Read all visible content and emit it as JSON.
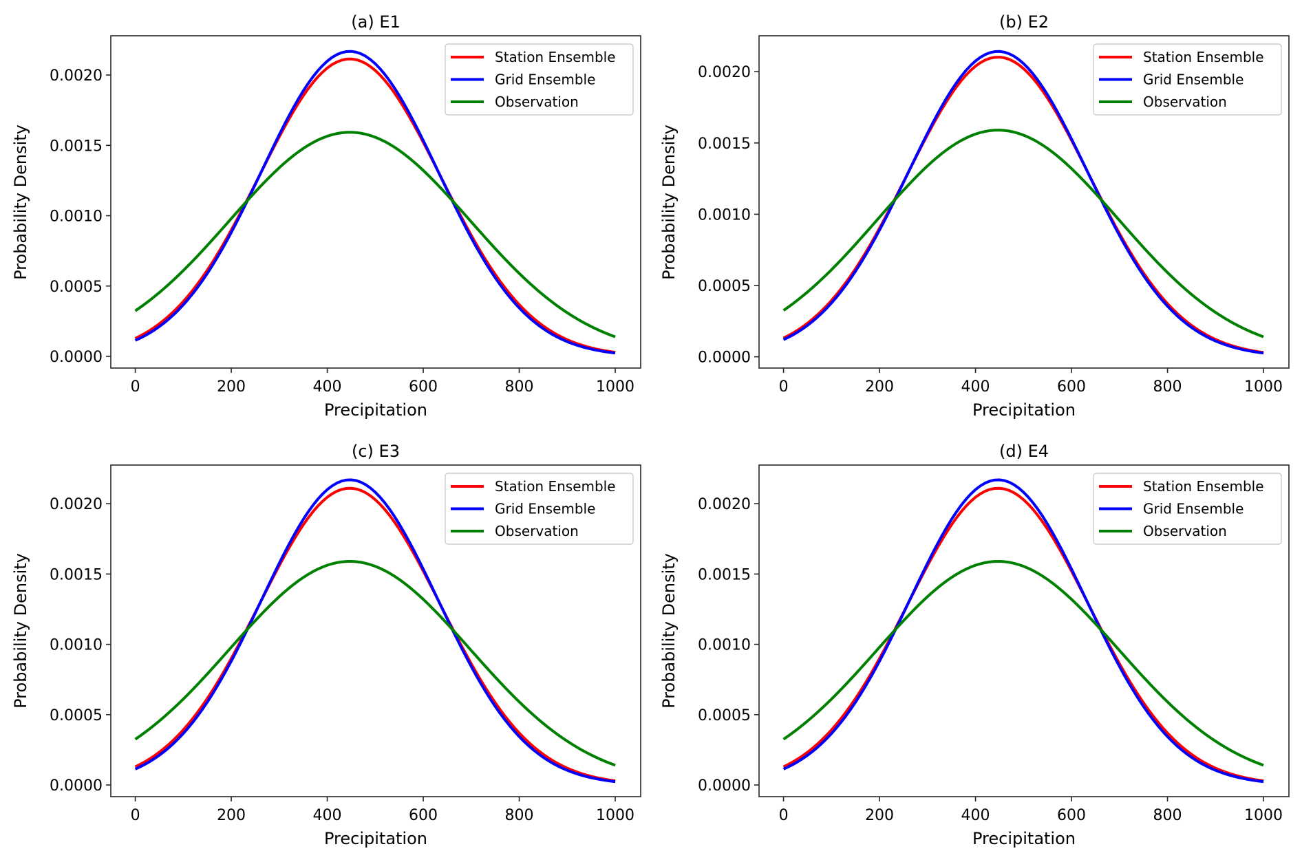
{
  "chart_data": [
    {
      "type": "line",
      "title": "(a) E1",
      "xlabel": "Precipitation",
      "ylabel": "Probability Density",
      "xlim": [
        -51,
        1053
      ],
      "ylim": [
        -8.3e-05,
        0.002279
      ],
      "xticks": [
        0,
        200,
        400,
        600,
        800,
        1000
      ],
      "xtick_labels": [
        "0",
        "200",
        "400",
        "600",
        "800",
        "1000"
      ],
      "yticks": [
        0.0,
        0.0005,
        0.001,
        0.0015,
        0.002
      ],
      "ytick_labels": [
        "0.0000",
        "0.0005",
        "0.0010",
        "0.0015",
        "0.0020"
      ],
      "grid": false,
      "legend_position": "top-right",
      "x": [
        0,
        50,
        100,
        150,
        200,
        250,
        300,
        350,
        400,
        450,
        500,
        550,
        600,
        650,
        700,
        750,
        800,
        850,
        900,
        950,
        1000
      ],
      "series": [
        {
          "name": "Station Ensemble",
          "color": "#ff0000",
          "mean": 447,
          "sd": 188.7,
          "values": [
            0.000128,
            0.000231,
            0.00039,
            0.000613,
            0.000898,
            0.001226,
            0.001561,
            0.001852,
            0.00205,
            0.002114,
            0.002032,
            0.001821,
            0.001522,
            0.001185,
            0.000861,
            0.000582,
            0.000367,
            0.000216,
            0.000119,
            6.05e-05,
            2.88e-05
          ]
        },
        {
          "name": "Grid Ensemble",
          "color": "#0000ff",
          "mean": 447,
          "sd": 184.0,
          "values": [
            0.000113,
            0.000211,
            0.000366,
            0.000589,
            0.000881,
            0.001222,
            0.001576,
            0.001887,
            0.002098,
            0.002168,
            0.00208,
            0.001854,
            0.001534,
            0.00118,
            0.000842,
            0.000559,
            0.000344,
            0.000197,
            0.000105,
            5.17e-05,
            2.37e-05
          ]
        },
        {
          "name": "Observation",
          "color": "#008000",
          "mean": 447,
          "sd": 250.4,
          "values": [
            0.000324,
            0.000453,
            0.00061,
            0.000788,
            0.000979,
            0.001169,
            0.001341,
            0.001478,
            0.001565,
            0.001593,
            0.001558,
            0.001464,
            0.001322,
            0.001147,
            0.000956,
            0.000766,
            0.00059,
            0.000436,
            0.00031,
            0.000212,
            0.000139
          ]
        }
      ]
    },
    {
      "type": "line",
      "title": "(b) E2",
      "xlabel": "Precipitation",
      "ylabel": "Probability Density",
      "xlim": [
        -51,
        1053
      ],
      "ylim": [
        -7.9e-05,
        0.002252
      ],
      "xticks": [
        0,
        200,
        400,
        600,
        800,
        1000
      ],
      "xtick_labels": [
        "0",
        "200",
        "400",
        "600",
        "800",
        "1000"
      ],
      "yticks": [
        0.0,
        0.0005,
        0.001,
        0.0015,
        0.002
      ],
      "ytick_labels": [
        "0.0000",
        "0.0005",
        "0.0010",
        "0.0015",
        "0.0020"
      ],
      "grid": false,
      "legend_position": "top-right",
      "x": [
        0,
        50,
        100,
        150,
        200,
        250,
        300,
        350,
        400,
        450,
        500,
        550,
        600,
        650,
        700,
        750,
        800,
        850,
        900,
        950,
        1000
      ],
      "series": [
        {
          "name": "Station Ensemble",
          "color": "#ff0000",
          "mean": 447,
          "sd": 189.8,
          "values": [
            0.000131,
            0.000236,
            0.000395,
            0.000618,
            0.000901,
            0.001227,
            0.001557,
            0.001845,
            0.002039,
            0.002102,
            0.002022,
            0.001814,
            0.001519,
            0.001186,
            0.000865,
            0.000588,
            0.000373,
            0.000221,
            0.000122,
            6.27e-05,
            3.01e-05
          ]
        },
        {
          "name": "Grid Ensemble",
          "color": "#0000ff",
          "mean": 447,
          "sd": 186.2,
          "values": [
            0.00012,
            0.000221,
            0.000377,
            0.0006,
            0.000889,
            0.001224,
            0.001569,
            0.00187,
            0.002075,
            0.002142,
            0.002057,
            0.001838,
            0.001528,
            0.001182,
            0.000851,
            0.00057,
            0.000355,
            0.000206,
            0.000111,
            5.57e-05,
            2.61e-05
          ]
        },
        {
          "name": "Observation",
          "color": "#008000",
          "mean": 447,
          "sd": 250.9,
          "values": [
            0.000324,
            0.000453,
            0.000609,
            0.000787,
            0.000978,
            0.001167,
            0.001339,
            0.001475,
            0.001562,
            0.00159,
            0.001555,
            0.001461,
            0.00132,
            0.001145,
            0.000955,
            0.000765,
            0.000589,
            0.000436,
            0.00031,
            0.000212,
            0.000139
          ]
        }
      ]
    },
    {
      "type": "line",
      "title": "(c) E3",
      "xlabel": "Precipitation",
      "ylabel": "Probability Density",
      "xlim": [
        -51,
        1053
      ],
      "ylim": [
        -8.3e-05,
        0.002275
      ],
      "xticks": [
        0,
        200,
        400,
        600,
        800,
        1000
      ],
      "xtick_labels": [
        "0",
        "200",
        "400",
        "600",
        "800",
        "1000"
      ],
      "yticks": [
        0.0,
        0.0005,
        0.001,
        0.0015,
        0.002
      ],
      "ytick_labels": [
        "0.0000",
        "0.0005",
        "0.0010",
        "0.0015",
        "0.0020"
      ],
      "grid": false,
      "legend_position": "top-right",
      "x": [
        0,
        50,
        100,
        150,
        200,
        250,
        300,
        350,
        400,
        450,
        500,
        550,
        600,
        650,
        700,
        750,
        800,
        850,
        900,
        950,
        1000
      ],
      "series": [
        {
          "name": "Station Ensemble",
          "color": "#ff0000",
          "mean": 447,
          "sd": 189.1,
          "values": [
            0.000129,
            0.000233,
            0.000392,
            0.000615,
            0.000899,
            0.001226,
            0.00156,
            0.00185,
            0.002046,
            0.00211,
            0.002029,
            0.001819,
            0.001521,
            0.001186,
            0.000862,
            0.000584,
            0.00037,
            0.000218,
            0.00012,
            6.13e-05,
            2.93e-05
          ]
        },
        {
          "name": "Grid Ensemble",
          "color": "#0000ff",
          "mean": 447,
          "sd": 183.9,
          "values": [
            0.000113,
            0.000211,
            0.000366,
            0.00059,
            0.000882,
            0.001223,
            0.001578,
            0.001889,
            0.0021,
            0.00217,
            0.002082,
            0.001856,
            0.001536,
            0.001181,
            0.000843,
            0.00056,
            0.000344,
            0.000197,
            0.000105,
            5.17e-05,
            2.37e-05
          ]
        },
        {
          "name": "Observation",
          "color": "#008000",
          "mean": 447,
          "sd": 250.9,
          "values": [
            0.000324,
            0.000453,
            0.000609,
            0.000787,
            0.000978,
            0.001167,
            0.001339,
            0.001475,
            0.001562,
            0.00159,
            0.001555,
            0.001461,
            0.00132,
            0.001145,
            0.000955,
            0.000765,
            0.000589,
            0.000436,
            0.00031,
            0.000212,
            0.000139
          ]
        }
      ]
    },
    {
      "type": "line",
      "title": "(d) E4",
      "xlabel": "Precipitation",
      "ylabel": "Probability Density",
      "xlim": [
        -51,
        1053
      ],
      "ylim": [
        -8.3e-05,
        0.002275
      ],
      "xticks": [
        0,
        200,
        400,
        600,
        800,
        1000
      ],
      "xtick_labels": [
        "0",
        "200",
        "400",
        "600",
        "800",
        "1000"
      ],
      "yticks": [
        0.0,
        0.0005,
        0.001,
        0.0015,
        0.002
      ],
      "ytick_labels": [
        "0.0000",
        "0.0005",
        "0.0010",
        "0.0015",
        "0.0020"
      ],
      "grid": false,
      "legend_position": "top-right",
      "x": [
        0,
        50,
        100,
        150,
        200,
        250,
        300,
        350,
        400,
        450,
        500,
        550,
        600,
        650,
        700,
        750,
        800,
        850,
        900,
        950,
        1000
      ],
      "series": [
        {
          "name": "Station Ensemble",
          "color": "#ff0000",
          "mean": 447,
          "sd": 189.1,
          "values": [
            0.000129,
            0.000233,
            0.000392,
            0.000615,
            0.000899,
            0.001226,
            0.00156,
            0.00185,
            0.002046,
            0.00211,
            0.002029,
            0.001819,
            0.001521,
            0.001186,
            0.000862,
            0.000584,
            0.00037,
            0.000218,
            0.00012,
            6.13e-05,
            2.93e-05
          ]
        },
        {
          "name": "Grid Ensemble",
          "color": "#0000ff",
          "mean": 447,
          "sd": 183.9,
          "values": [
            0.000113,
            0.000211,
            0.000366,
            0.00059,
            0.000882,
            0.001223,
            0.001578,
            0.001889,
            0.0021,
            0.00217,
            0.002082,
            0.001856,
            0.001536,
            0.001181,
            0.000843,
            0.00056,
            0.000344,
            0.000197,
            0.000105,
            5.17e-05,
            2.37e-05
          ]
        },
        {
          "name": "Observation",
          "color": "#008000",
          "mean": 447,
          "sd": 250.9,
          "values": [
            0.000324,
            0.000453,
            0.000609,
            0.000787,
            0.000978,
            0.001167,
            0.001339,
            0.001475,
            0.001562,
            0.00159,
            0.001555,
            0.001461,
            0.00132,
            0.001145,
            0.000955,
            0.000765,
            0.000589,
            0.000436,
            0.00031,
            0.000212,
            0.000139
          ]
        }
      ]
    }
  ]
}
